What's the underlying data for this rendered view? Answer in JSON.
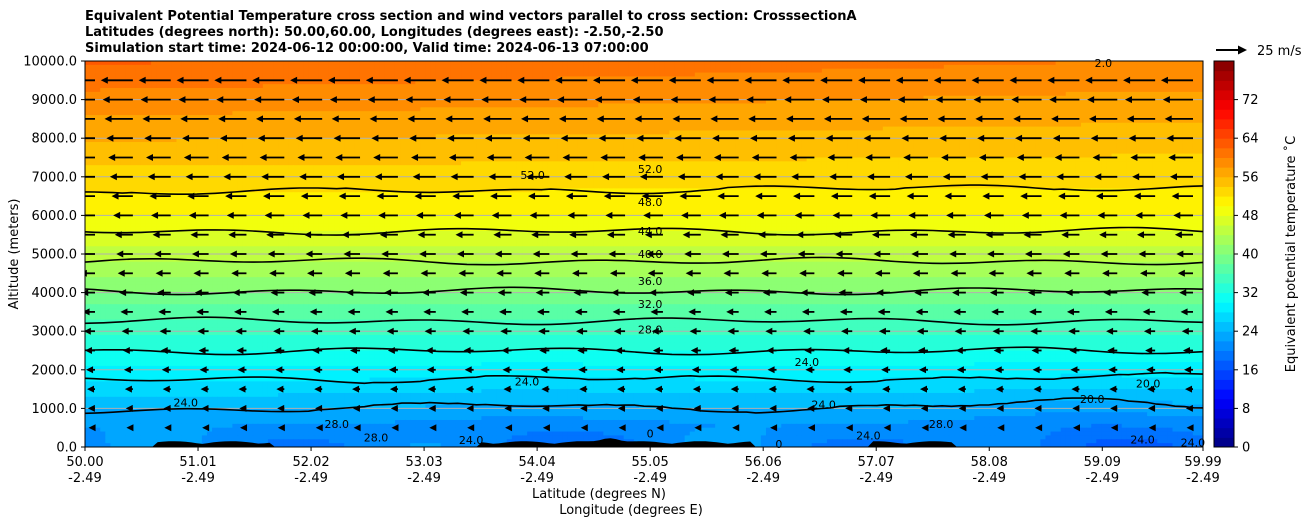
{
  "chart_data": {
    "type": "contour",
    "title_lines": [
      "Equivalent Potential Temperature cross section and wind vectors parallel to cross section: CrosssectionA",
      "Latitudes (degrees north): 50.00,60.00, Longitudes (degrees east): -2.50,-2.50",
      "Simulation start time: 2024-06-12 00:00:00, Valid time: 2024-06-13 07:00:00"
    ],
    "xlabel_lines": [
      "Latitude (degrees N)",
      "Longitude (degrees E)"
    ],
    "ylabel": "Altitude (meters)",
    "x_ticks": [
      {
        "lat": "50.00",
        "lon": "-2.49"
      },
      {
        "lat": "51.01",
        "lon": "-2.49"
      },
      {
        "lat": "52.02",
        "lon": "-2.49"
      },
      {
        "lat": "53.03",
        "lon": "-2.49"
      },
      {
        "lat": "54.04",
        "lon": "-2.49"
      },
      {
        "lat": "55.05",
        "lon": "-2.49"
      },
      {
        "lat": "56.06",
        "lon": "-2.49"
      },
      {
        "lat": "57.07",
        "lon": "-2.49"
      },
      {
        "lat": "58.08",
        "lon": "-2.49"
      },
      {
        "lat": "59.09",
        "lon": "-2.49"
      },
      {
        "lat": "59.99",
        "lon": "-2.49"
      }
    ],
    "xlim": [
      50.0,
      59.99
    ],
    "y_ticks": [
      "0.0",
      "1000.0",
      "2000.0",
      "3000.0",
      "4000.0",
      "5000.0",
      "6000.0",
      "7000.0",
      "8000.0",
      "9000.0",
      "10000.0"
    ],
    "ylim": [
      0,
      10000
    ],
    "grid": "horizontal",
    "colorbar": {
      "label": "Equivalent potential temperature ˚C",
      "ticks": [
        "0",
        "8",
        "16",
        "24",
        "32",
        "40",
        "48",
        "56",
        "64",
        "72"
      ],
      "range": [
        0,
        80
      ],
      "colormap": "jet"
    },
    "wind_key_label": "25 m/s",
    "contour_labels": [
      {
        "text": "52.0",
        "x": 55.05,
        "y": 7200
      },
      {
        "text": "48.0",
        "x": 55.05,
        "y": 6350
      },
      {
        "text": "44.0",
        "x": 55.05,
        "y": 5600
      },
      {
        "text": "40.0",
        "x": 55.05,
        "y": 5000
      },
      {
        "text": "36.0",
        "x": 55.05,
        "y": 4300
      },
      {
        "text": "32.0",
        "x": 55.05,
        "y": 3700
      },
      {
        "text": "28.0",
        "x": 55.05,
        "y": 3050
      },
      {
        "text": "52.0",
        "x": 54.0,
        "y": 7050
      },
      {
        "text": "24.0",
        "x": 53.95,
        "y": 1700
      },
      {
        "text": "24.0",
        "x": 50.9,
        "y": 1150
      },
      {
        "text": "28.0",
        "x": 52.25,
        "y": 600
      },
      {
        "text": "28.0",
        "x": 52.6,
        "y": 250
      },
      {
        "text": "24.0",
        "x": 53.45,
        "y": 180
      },
      {
        "text": "24.0",
        "x": 56.45,
        "y": 2200
      },
      {
        "text": "24.0",
        "x": 56.6,
        "y": 1100
      },
      {
        "text": "24.0",
        "x": 57.0,
        "y": 300
      },
      {
        "text": "28.0",
        "x": 57.65,
        "y": 600
      },
      {
        "text": "20.0",
        "x": 59.0,
        "y": 1250
      },
      {
        "text": "20.0",
        "x": 59.5,
        "y": 1650
      },
      {
        "text": "24.0",
        "x": 59.45,
        "y": 200
      },
      {
        "text": "24.0",
        "x": 59.9,
        "y": 120
      },
      {
        "text": "2.0",
        "x": 59.1,
        "y": 9950
      },
      {
        "text": "0",
        "x": 55.05,
        "y": 350
      },
      {
        "text": "0",
        "x": 56.2,
        "y": 80
      }
    ],
    "colors": {
      "contour": "#000000",
      "terrain": "#000000",
      "grid": "#b0b0b0"
    }
  }
}
